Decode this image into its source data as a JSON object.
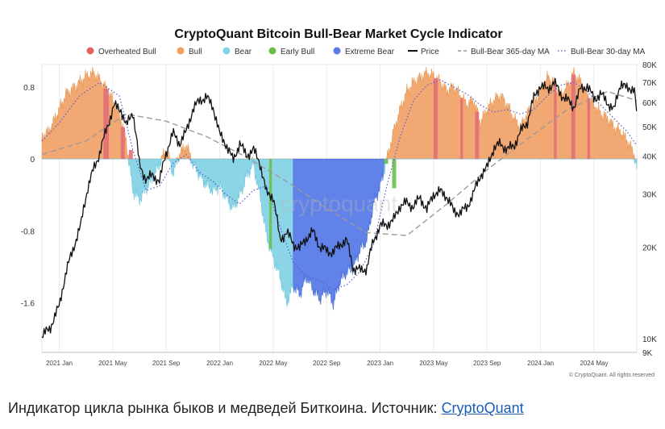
{
  "chart_data": {
    "type": "area",
    "title": "CryptoQuant Bitcoin Bull-Bear Market Cycle Indicator",
    "legend": {
      "position": "top",
      "items": [
        {
          "label": "Overheated Bull",
          "kind": "dot",
          "color": "#e06666"
        },
        {
          "label": "Bull",
          "kind": "dot",
          "color": "#f0a060"
        },
        {
          "label": "Bear",
          "kind": "dot",
          "color": "#7fd3e8"
        },
        {
          "label": "Early Bull",
          "kind": "dot",
          "color": "#6abf4b"
        },
        {
          "label": "Extreme Bear",
          "kind": "dot",
          "color": "#5b7be8"
        },
        {
          "label": "Price",
          "kind": "line",
          "color": "#111111"
        },
        {
          "label": "Bull-Bear 365-day MA",
          "kind": "dash",
          "color": "#999999"
        },
        {
          "label": "Bull-Bear 30-day MA",
          "kind": "dot-line",
          "color": "#6b6bd6"
        }
      ]
    },
    "x_axis": {
      "ticks": [
        "2021 Jan",
        "2021 May",
        "2021 Sep",
        "2022 Jan",
        "2022 May",
        "2022 Sep",
        "2023 Jan",
        "2023 May",
        "2023 Sep",
        "2024 Jan",
        "2024 May"
      ],
      "tick_months": [
        1,
        5,
        9,
        13,
        17,
        21,
        25,
        29,
        33,
        37,
        41
      ],
      "range_months": [
        -0.3,
        44.2
      ]
    },
    "y_left": {
      "ticks": [
        "0.8",
        "0",
        "-0.8",
        "-1.6"
      ],
      "tick_values": [
        0.8,
        0,
        -0.8,
        -1.6
      ],
      "range": [
        -2.15,
        1.05
      ]
    },
    "y_right": {
      "ticks": [
        "80K",
        "70K",
        "60K",
        "50K",
        "40K",
        "30K",
        "20K",
        "10K",
        "9K"
      ],
      "tick_values": [
        80000,
        70000,
        60000,
        50000,
        40000,
        30000,
        20000,
        10000,
        9000
      ],
      "scale": "log",
      "range": [
        9000,
        80000
      ]
    },
    "indicator": {
      "months": [
        -0.3,
        0.2,
        1.0,
        1.5,
        2.2,
        3.0,
        3.6,
        4.0,
        4.5,
        5.0,
        5.6,
        6.0,
        6.5,
        7.0,
        8.0,
        8.5,
        9.0,
        9.5,
        10.0,
        10.5,
        11.0,
        11.8,
        12.5,
        13.0,
        13.6,
        14.0,
        14.5,
        15.0,
        15.5,
        16.0,
        16.5,
        17.0,
        17.5,
        18.0,
        18.5,
        19.0,
        19.5,
        20.0,
        20.5,
        21.0,
        21.5,
        22.0,
        22.5,
        23.0,
        23.5,
        24.0,
        24.5,
        25.0,
        25.6,
        26.0,
        26.5,
        27.0,
        27.5,
        28.0,
        28.5,
        29.0,
        29.5,
        30.0,
        30.5,
        31.0,
        31.5,
        32.0,
        32.5,
        33.0,
        33.5,
        34.0,
        34.5,
        35.0,
        35.5,
        36.0,
        36.5,
        37.0,
        37.5,
        38.0,
        38.5,
        39.0,
        39.5,
        40.0,
        40.5,
        41.0,
        41.5,
        42.0,
        42.5,
        43.0,
        43.5,
        44.0,
        44.2
      ],
      "values": [
        0.25,
        0.3,
        0.55,
        0.72,
        0.8,
        0.92,
        0.95,
        0.88,
        0.78,
        0.65,
        0.45,
        0.2,
        -0.35,
        -0.45,
        -0.2,
        -0.05,
        0.1,
        -0.15,
        0.05,
        0.15,
        -0.05,
        -0.25,
        -0.35,
        -0.3,
        -0.45,
        -0.55,
        -0.4,
        -0.2,
        -0.05,
        -0.4,
        -0.85,
        -1.1,
        -1.3,
        -1.6,
        -1.4,
        -1.5,
        -1.3,
        -1.45,
        -1.55,
        -1.45,
        -1.6,
        -1.35,
        -1.25,
        -1.2,
        -1.0,
        -0.9,
        -0.5,
        -0.3,
        0.05,
        0.3,
        0.55,
        0.75,
        0.85,
        0.9,
        0.95,
        0.92,
        0.85,
        0.75,
        0.8,
        0.7,
        0.6,
        0.65,
        0.4,
        0.55,
        0.65,
        0.7,
        0.6,
        0.45,
        0.35,
        0.5,
        0.6,
        0.75,
        0.9,
        0.85,
        0.7,
        0.8,
        0.95,
        0.85,
        0.7,
        0.6,
        0.5,
        0.45,
        0.35,
        0.3,
        0.2,
        0.05,
        -0.1
      ]
    },
    "price": {
      "months": [
        -0.3,
        0.3,
        1.0,
        1.5,
        2.0,
        2.6,
        3.1,
        3.6,
        4.0,
        4.6,
        5.1,
        5.6,
        6.0,
        6.5,
        7.0,
        7.5,
        8.0,
        8.5,
        9.0,
        9.5,
        10.0,
        10.5,
        11.0,
        11.5,
        12.0,
        12.5,
        13.0,
        13.5,
        14.0,
        14.5,
        15.0,
        15.5,
        16.0,
        16.5,
        17.0,
        17.5,
        18.0,
        18.5,
        19.0,
        19.5,
        20.0,
        20.5,
        21.0,
        21.5,
        22.0,
        22.5,
        23.0,
        23.5,
        24.0,
        24.5,
        25.0,
        25.5,
        26.0,
        26.5,
        27.0,
        27.5,
        28.0,
        28.5,
        29.0,
        29.5,
        30.0,
        30.5,
        31.0,
        31.5,
        32.0,
        32.5,
        33.0,
        33.5,
        34.0,
        34.5,
        35.0,
        35.5,
        36.0,
        36.5,
        37.0,
        37.5,
        38.0,
        38.5,
        39.0,
        39.5,
        40.0,
        40.5,
        41.0,
        41.5,
        42.0,
        42.5,
        43.0,
        43.5,
        44.0,
        44.2
      ],
      "values": [
        10200,
        10800,
        12800,
        16500,
        19500,
        23500,
        31000,
        36500,
        40500,
        50000,
        58500,
        57000,
        50000,
        56000,
        37000,
        33500,
        34500,
        33000,
        41000,
        47500,
        44000,
        48000,
        57000,
        61000,
        62500,
        58000,
        47000,
        43500,
        38500,
        44000,
        40000,
        42000,
        38000,
        30000,
        29500,
        21000,
        22500,
        20500,
        19800,
        21500,
        22500,
        20000,
        19500,
        19200,
        20500,
        21000,
        17000,
        16800,
        17000,
        21000,
        23500,
        23800,
        24500,
        27500,
        28000,
        27200,
        29200,
        26500,
        30000,
        30500,
        29400,
        26200,
        26000,
        27100,
        30200,
        34500,
        36500,
        42500,
        43800,
        42000,
        43100,
        48000,
        51500,
        62000,
        68500,
        66000,
        70000,
        64000,
        61000,
        58000,
        66500,
        68000,
        61500,
        64000,
        60000,
        56500,
        70000,
        66000,
        67500,
        55000
      ],
      "pct_low": [
        1.8,
        1.6,
        1.9,
        2.5,
        2.8,
        1.5
      ]
    },
    "ma365": {
      "months": [
        -0.3,
        3.0,
        6.0,
        9.0,
        12.0,
        15.0,
        18.0,
        21.0,
        24.0,
        27.0,
        30.0,
        33.0,
        36.0,
        39.0,
        42.0,
        44.2
      ],
      "values": [
        0.05,
        0.2,
        0.5,
        0.42,
        0.25,
        0.02,
        -0.25,
        -0.55,
        -0.82,
        -0.85,
        -0.5,
        -0.12,
        0.22,
        0.55,
        0.75,
        0.65
      ]
    },
    "ma30": {
      "months": [
        -0.3,
        1.0,
        2.5,
        4.0,
        5.5,
        6.5,
        7.5,
        8.5,
        9.5,
        10.5,
        11.5,
        12.5,
        13.5,
        14.5,
        15.5,
        16.5,
        17.5,
        18.5,
        19.5,
        20.5,
        21.5,
        22.5,
        23.5,
        24.5,
        25.5,
        26.5,
        27.5,
        28.5,
        29.5,
        30.5,
        31.5,
        32.5,
        33.5,
        34.5,
        35.5,
        36.5,
        37.5,
        38.5,
        39.5,
        40.5,
        41.5,
        42.5,
        43.5,
        44.2
      ],
      "values": [
        0.2,
        0.4,
        0.7,
        0.85,
        0.7,
        0.1,
        -0.35,
        -0.3,
        -0.05,
        0.05,
        -0.15,
        -0.25,
        -0.4,
        -0.5,
        -0.35,
        -0.3,
        -0.75,
        -1.15,
        -1.3,
        -1.35,
        -1.45,
        -1.4,
        -1.25,
        -0.95,
        -0.3,
        0.25,
        0.65,
        0.82,
        0.88,
        0.8,
        0.72,
        0.6,
        0.52,
        0.55,
        0.5,
        0.55,
        0.7,
        0.82,
        0.85,
        0.75,
        0.6,
        0.45,
        0.3,
        0.15
      ]
    },
    "overheated_bands": [
      [
        4.3,
        4.7
      ],
      [
        5.6,
        5.9
      ],
      [
        6.2,
        6.5
      ],
      [
        29.0,
        29.3
      ],
      [
        31.0,
        31.2
      ],
      [
        32.1,
        32.4
      ],
      [
        38.0,
        38.2
      ],
      [
        39.3,
        39.6
      ],
      [
        40.5,
        40.7
      ]
    ],
    "early_bull_bands": [
      [
        16.7,
        16.9
      ],
      [
        25.3,
        25.6
      ],
      [
        25.9,
        26.2
      ]
    ],
    "extreme_bear_range": [
      18.5,
      25.3
    ],
    "watermark": "cryptoquant",
    "source_note": "© CryptoQuant. All rights reserved"
  },
  "caption": {
    "text": "Индикатор цикла рынка быков и медведей Биткоина. Источник: ",
    "link": "CryptoQuant"
  }
}
